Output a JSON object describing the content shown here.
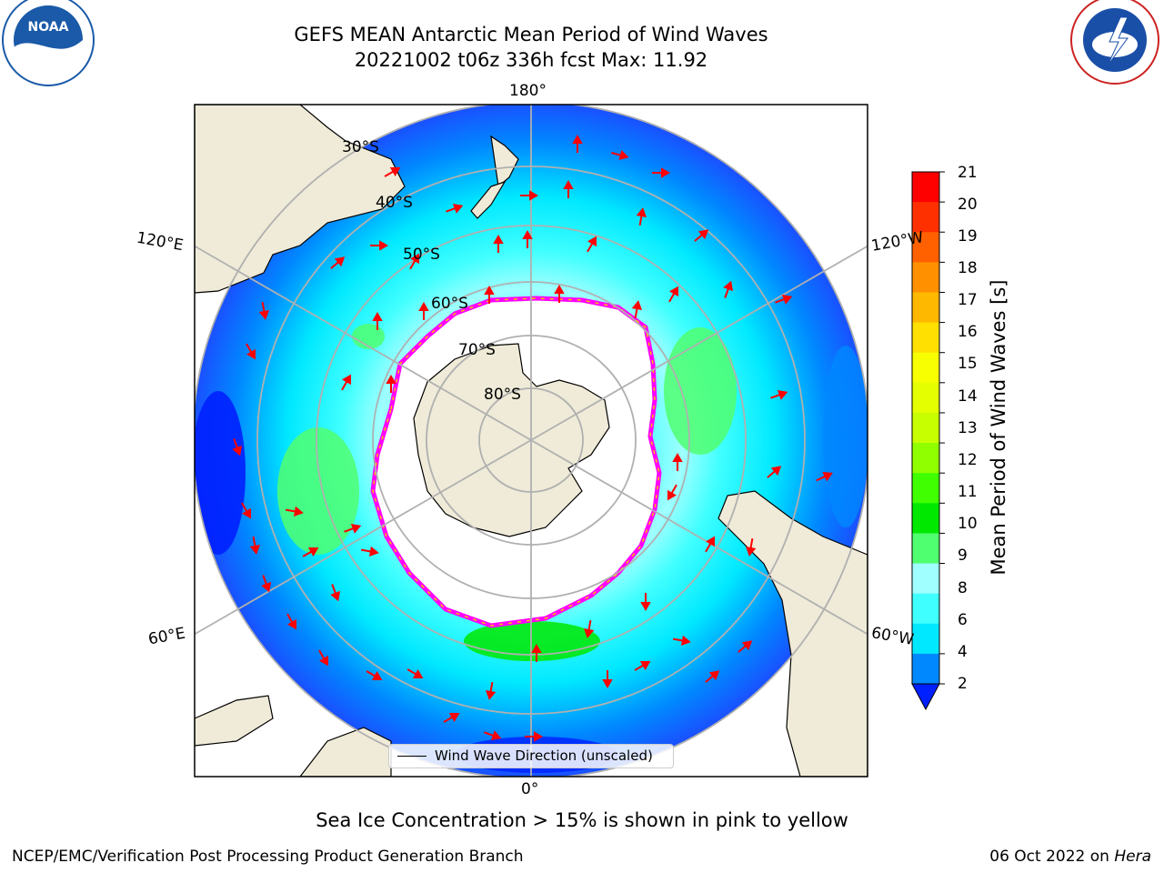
{
  "header": {
    "title": "GEFS MEAN Antarctic Mean Period of Wind Waves",
    "subtitle": "20221002 t06z 336h fcst   Max: 11.92"
  },
  "map": {
    "projection": "south-polar-stereographic",
    "longitude_labels": {
      "top": "180°",
      "bottom": "0°",
      "left_upper": "120°E",
      "left_lower": "60°E",
      "right_upper": "120°W",
      "right_lower": "60°W"
    },
    "latitude_labels": [
      "30°S",
      "40°S",
      "50°S",
      "60°S",
      "70°S",
      "80°S"
    ],
    "land_color": "#efebd8",
    "ice_edge_colors": [
      "#ff00ff",
      "#ff69b4",
      "#ffc000"
    ]
  },
  "colorbar": {
    "label": "Mean Period of Wind Waves [s]",
    "ticks": [
      "21",
      "20",
      "19",
      "18",
      "17",
      "16",
      "15",
      "14",
      "13",
      "12",
      "11",
      "10",
      "9",
      "8",
      "6",
      "4",
      "2"
    ],
    "colors": [
      "#ff0000",
      "#ff3000",
      "#ff6000",
      "#ff9000",
      "#ffb800",
      "#ffe000",
      "#f8ff00",
      "#e4ff00",
      "#c8ff00",
      "#90ff00",
      "#40ff00",
      "#00e800",
      "#50ff70",
      "#a0ffff",
      "#40ffff",
      "#00e8ff",
      "#0088ff",
      "#0020ff"
    ]
  },
  "legend": {
    "label": "Wind Wave Direction (unscaled)"
  },
  "footer": {
    "note": "Sea Ice Concentration > 15% is shown in pink to yellow",
    "branch": "NCEP/EMC/Verification Post Processing Product Generation Branch",
    "date": "06 Oct 2022 on ",
    "host": "Hera"
  },
  "logos": {
    "left": "NOAA",
    "right": "NATIONAL WEATHER SERVICE"
  }
}
